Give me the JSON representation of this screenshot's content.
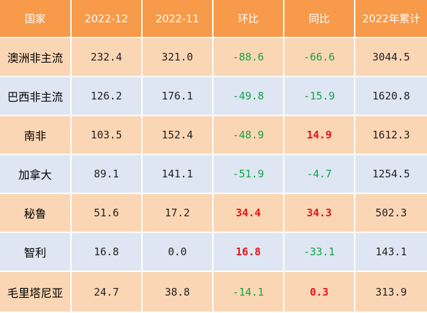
{
  "chart_data": {
    "type": "table",
    "columns": [
      "国家",
      "2022-12",
      "2022-11",
      "环比",
      "同比",
      "2022年累计"
    ],
    "rows": [
      {
        "country": "澳洲非主流",
        "dec": "232.4",
        "nov": "321.0",
        "mom": "-88.6",
        "yoy": "-66.6",
        "ytd": "3044.5"
      },
      {
        "country": "巴西非主流",
        "dec": "126.2",
        "nov": "176.1",
        "mom": "-49.8",
        "yoy": "-15.9",
        "ytd": "1620.8"
      },
      {
        "country": "南非",
        "dec": "103.5",
        "nov": "152.4",
        "mom": "-48.9",
        "yoy": "14.9",
        "ytd": "1612.3"
      },
      {
        "country": "加拿大",
        "dec": "89.1",
        "nov": "141.1",
        "mom": "-51.9",
        "yoy": "-4.7",
        "ytd": "1254.5"
      },
      {
        "country": "秘鲁",
        "dec": "51.6",
        "nov": "17.2",
        "mom": "34.4",
        "yoy": "34.3",
        "ytd": "502.3"
      },
      {
        "country": "智利",
        "dec": "16.8",
        "nov": "0.0",
        "mom": "16.8",
        "yoy": "-33.1",
        "ytd": "143.1"
      },
      {
        "country": "毛里塔尼亚",
        "dec": "24.7",
        "nov": "38.8",
        "mom": "-14.1",
        "yoy": "0.3",
        "ytd": "313.9"
      }
    ]
  },
  "colors": {
    "header_bg": "#f79a4a",
    "header_text": "#ffffff",
    "row_odd_bg": "#fbd6b5",
    "row_even_bg": "#dde6f2",
    "positive": "#e8141b",
    "negative": "#12a34a"
  }
}
